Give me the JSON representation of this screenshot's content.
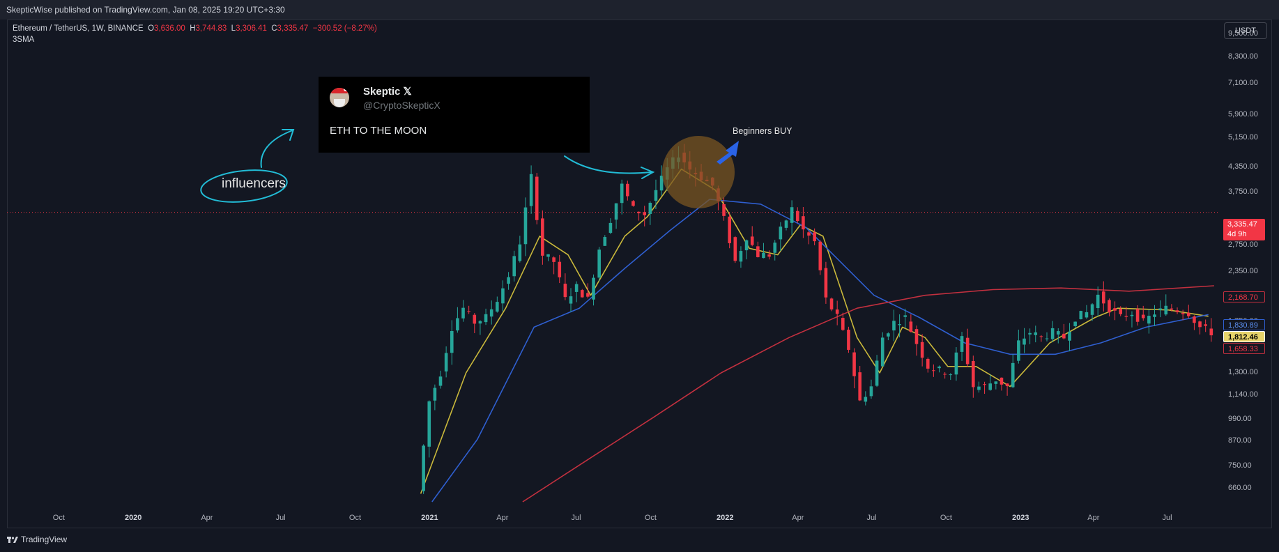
{
  "header": {
    "published": "SkepticWise published on TradingView.com, Jan 08, 2025 19:20 UTC+3:30"
  },
  "legend": {
    "symbol": "Ethereum / TetherUS, 1W, BINANCE",
    "o_label": "O",
    "o": "3,636.00",
    "h_label": "H",
    "h": "3,744.83",
    "l_label": "L",
    "l": "3,306.41",
    "c_label": "C",
    "c": "3,335.47",
    "change": "−300.52 (−8.27%)",
    "indicator": "3SMA"
  },
  "currency": "USDT",
  "price_badges": {
    "last": "3,335.47",
    "countdown": "4d 9h",
    "sma_red": "2,168.70",
    "sma_blue": "1,830.89",
    "sma_yellow": "1,812.46",
    "low_level": "1,658.33"
  },
  "colors": {
    "up": "#26a69a",
    "down": "#f23645",
    "sma_fast": "#c9b83b",
    "sma_mid": "#2f5fd0",
    "sma_slow": "#c2303f",
    "annotation": "#22bcd6",
    "circle": "#7a5522",
    "buy_arrow": "#2a63e6",
    "bg": "#131722"
  },
  "tweet": {
    "name": "Skeptic 𝕏",
    "handle": "@CryptoSkepticX",
    "text": "ETH TO THE MOON"
  },
  "annotations": {
    "influencers": "influencers",
    "beginners": "Beginners BUY"
  },
  "footer": {
    "logo": "TradingView"
  },
  "chart_data": {
    "type": "candlestick",
    "title": "Ethereum / TetherUS, 1W, BINANCE",
    "y_scale": "log",
    "y_ticks": [
      660,
      750,
      870,
      990,
      1140,
      1300,
      1500,
      1750,
      2050,
      2350,
      2750,
      3750,
      4350,
      5150,
      5900,
      7100,
      8300,
      9500
    ],
    "y_tick_labels": [
      "660.00",
      "750.00",
      "870.00",
      "990.00",
      "1,140.00",
      "1,300.00",
      "1,500.00",
      "1,750.00",
      "2,050.00",
      "2,350.00",
      "2,750.00",
      "3,750.00",
      "4,350.00",
      "5,150.00",
      "5,900.00",
      "7,100.00",
      "8,300.00",
      "9,500.00"
    ],
    "x_tick_labels": [
      {
        "label": "Oct",
        "date": "2019-10-01",
        "bold": false
      },
      {
        "label": "2020",
        "date": "2020-01-01",
        "bold": true
      },
      {
        "label": "Apr",
        "date": "2020-04-01",
        "bold": false
      },
      {
        "label": "Jul",
        "date": "2020-07-01",
        "bold": false
      },
      {
        "label": "Oct",
        "date": "2020-10-01",
        "bold": false
      },
      {
        "label": "2021",
        "date": "2021-01-01",
        "bold": true
      },
      {
        "label": "Apr",
        "date": "2021-04-01",
        "bold": false
      },
      {
        "label": "Jul",
        "date": "2021-07-01",
        "bold": false
      },
      {
        "label": "Oct",
        "date": "2021-10-01",
        "bold": false
      },
      {
        "label": "2022",
        "date": "2022-01-01",
        "bold": true
      },
      {
        "label": "Apr",
        "date": "2022-04-01",
        "bold": false
      },
      {
        "label": "Jul",
        "date": "2022-07-01",
        "bold": false
      },
      {
        "label": "Oct",
        "date": "2022-10-01",
        "bold": false
      },
      {
        "label": "2023",
        "date": "2023-01-01",
        "bold": true
      },
      {
        "label": "Apr",
        "date": "2023-04-01",
        "bold": false
      },
      {
        "label": "Jul",
        "date": "2023-07-01",
        "bold": false
      }
    ],
    "x_range": [
      "2019-07-29",
      "2023-09-04"
    ],
    "y_range": [
      610,
      10300
    ],
    "last_price": 3335.47,
    "points": [
      [
        "2020-12-21",
        650
      ],
      [
        "2021-01-04",
        1100
      ],
      [
        "2021-01-18",
        1300
      ],
      [
        "2021-02-01",
        1700
      ],
      [
        "2021-02-15",
        1900
      ],
      [
        "2021-03-01",
        1750
      ],
      [
        "2021-03-15",
        1800
      ],
      [
        "2021-03-29",
        2000
      ],
      [
        "2021-04-12",
        2300
      ],
      [
        "2021-04-26",
        2800
      ],
      [
        "2021-05-10",
        4100
      ],
      [
        "2021-05-24",
        2600
      ],
      [
        "2021-06-07",
        2500
      ],
      [
        "2021-06-21",
        2000
      ],
      [
        "2021-07-05",
        2150
      ],
      [
        "2021-07-19",
        2000
      ],
      [
        "2021-08-02",
        2700
      ],
      [
        "2021-08-16",
        3200
      ],
      [
        "2021-08-30",
        3900
      ],
      [
        "2021-09-13",
        3400
      ],
      [
        "2021-09-27",
        3300
      ],
      [
        "2021-10-11",
        3800
      ],
      [
        "2021-10-25",
        4300
      ],
      [
        "2021-11-08",
        4700
      ],
      [
        "2021-11-22",
        4300
      ],
      [
        "2021-12-06",
        4100
      ],
      [
        "2021-12-20",
        3900
      ],
      [
        "2022-01-03",
        3200
      ],
      [
        "2022-01-17",
        2500
      ],
      [
        "2022-01-31",
        2900
      ],
      [
        "2022-02-14",
        2600
      ],
      [
        "2022-02-28",
        2600
      ],
      [
        "2022-03-14",
        3000
      ],
      [
        "2022-03-28",
        3400
      ],
      [
        "2022-04-11",
        3000
      ],
      [
        "2022-04-25",
        2800
      ],
      [
        "2022-05-09",
        2000
      ],
      [
        "2022-05-23",
        1800
      ],
      [
        "2022-06-06",
        1500
      ],
      [
        "2022-06-20",
        1100
      ],
      [
        "2022-07-04",
        1200
      ],
      [
        "2022-07-18",
        1600
      ],
      [
        "2022-08-01",
        1750
      ],
      [
        "2022-08-15",
        1800
      ],
      [
        "2022-08-29",
        1550
      ],
      [
        "2022-09-12",
        1350
      ],
      [
        "2022-09-26",
        1320
      ],
      [
        "2022-10-10",
        1300
      ],
      [
        "2022-10-24",
        1600
      ],
      [
        "2022-11-07",
        1200
      ],
      [
        "2022-11-21",
        1200
      ],
      [
        "2022-12-05",
        1250
      ],
      [
        "2022-12-19",
        1200
      ],
      [
        "2023-01-02",
        1550
      ],
      [
        "2023-01-16",
        1650
      ],
      [
        "2023-01-30",
        1600
      ],
      [
        "2023-02-13",
        1650
      ],
      [
        "2023-02-27",
        1600
      ],
      [
        "2023-03-13",
        1800
      ],
      [
        "2023-03-27",
        1850
      ],
      [
        "2023-04-10",
        2050
      ],
      [
        "2023-04-24",
        1900
      ],
      [
        "2023-05-08",
        1800
      ],
      [
        "2023-05-22",
        1850
      ],
      [
        "2023-06-05",
        1750
      ],
      [
        "2023-06-19",
        1850
      ],
      [
        "2023-07-03",
        1900
      ],
      [
        "2023-07-17",
        1880
      ],
      [
        "2023-07-31",
        1850
      ],
      [
        "2023-08-14",
        1700
      ],
      [
        "2023-08-28",
        1650
      ]
    ],
    "series": [
      {
        "values": [
          [
            "2020-12-21",
            640
          ],
          [
            "2021-02-15",
            1300
          ],
          [
            "2021-04-05",
            1900
          ],
          [
            "2021-05-17",
            2900
          ],
          [
            "2021-06-21",
            2600
          ],
          [
            "2021-07-19",
            2050
          ],
          [
            "2021-08-30",
            2900
          ],
          [
            "2021-09-27",
            3250
          ],
          [
            "2021-11-08",
            4300
          ],
          [
            "2021-12-20",
            3800
          ],
          [
            "2022-01-31",
            2700
          ],
          [
            "2022-03-07",
            2600
          ],
          [
            "2022-04-04",
            3100
          ],
          [
            "2022-05-02",
            2900
          ],
          [
            "2022-06-13",
            1600
          ],
          [
            "2022-07-11",
            1300
          ],
          [
            "2022-08-08",
            1700
          ],
          [
            "2022-09-05",
            1600
          ],
          [
            "2022-10-03",
            1350
          ],
          [
            "2022-11-07",
            1350
          ],
          [
            "2022-12-19",
            1200
          ],
          [
            "2023-02-06",
            1550
          ],
          [
            "2023-04-03",
            1800
          ],
          [
            "2023-05-01",
            1900
          ],
          [
            "2023-07-03",
            1880
          ],
          [
            "2023-08-21",
            1812
          ]
        ]
      },
      {
        "values": [
          [
            "2021-01-04",
            610
          ],
          [
            "2021-03-01",
            880
          ],
          [
            "2021-05-10",
            1700
          ],
          [
            "2021-07-05",
            1900
          ],
          [
            "2021-08-30",
            2400
          ],
          [
            "2021-10-25",
            3000
          ],
          [
            "2021-12-13",
            3600
          ],
          [
            "2022-02-14",
            3500
          ],
          [
            "2022-04-11",
            3050
          ],
          [
            "2022-05-23",
            2500
          ],
          [
            "2022-07-04",
            2050
          ],
          [
            "2022-08-29",
            1800
          ],
          [
            "2022-10-24",
            1550
          ],
          [
            "2022-12-19",
            1450
          ],
          [
            "2023-02-13",
            1450
          ],
          [
            "2023-04-10",
            1550
          ],
          [
            "2023-06-05",
            1700
          ],
          [
            "2023-08-21",
            1830
          ]
        ]
      },
      {
        "values": [
          [
            "2021-04-26",
            610
          ],
          [
            "2021-07-19",
            790
          ],
          [
            "2021-10-04",
            1000
          ],
          [
            "2021-12-27",
            1300
          ],
          [
            "2022-03-21",
            1600
          ],
          [
            "2022-06-13",
            1900
          ],
          [
            "2022-09-05",
            2050
          ],
          [
            "2022-11-28",
            2120
          ],
          [
            "2023-02-20",
            2140
          ],
          [
            "2023-05-15",
            2100
          ],
          [
            "2023-08-28",
            2168
          ]
        ]
      }
    ]
  }
}
